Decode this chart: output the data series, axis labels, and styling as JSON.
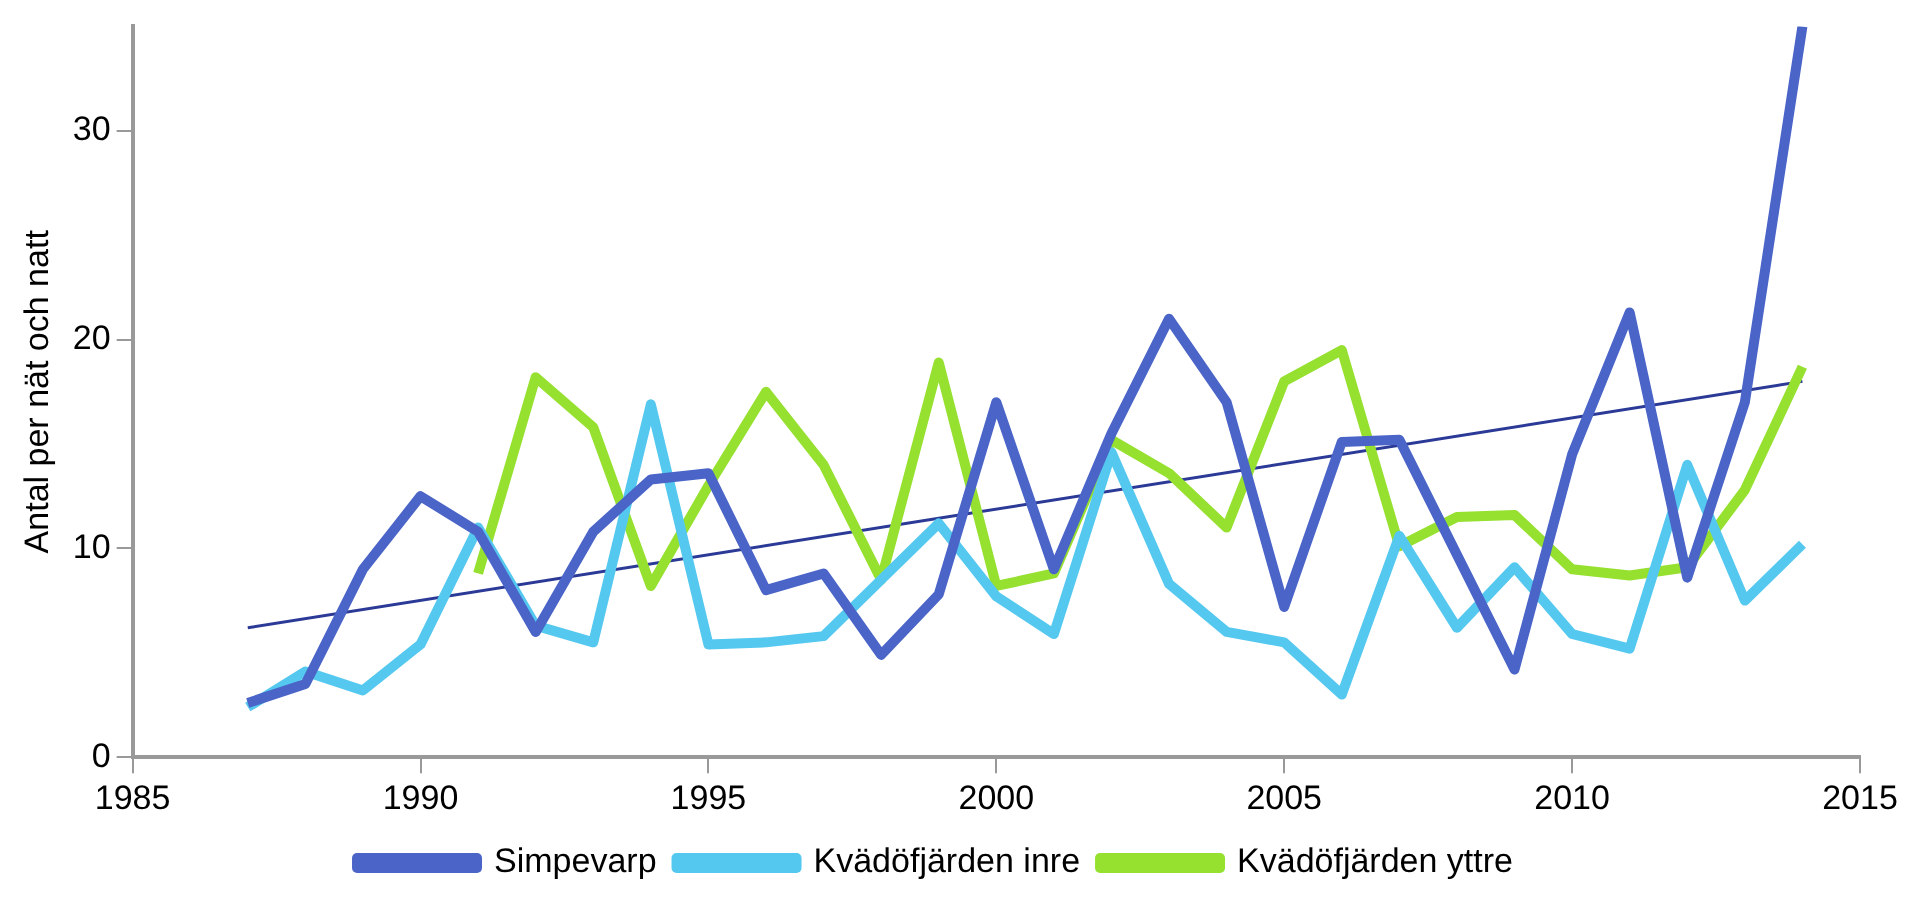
{
  "chart_data": {
    "type": "line",
    "ylabel": "Antal per nät och natt",
    "x": [
      1987,
      1988,
      1989,
      1990,
      1991,
      1992,
      1993,
      1994,
      1995,
      1996,
      1997,
      1998,
      1999,
      2000,
      2001,
      2002,
      2003,
      2004,
      2005,
      2006,
      2007,
      2008,
      2009,
      2010,
      2011,
      2012,
      2013,
      2014
    ],
    "series": [
      {
        "name": "Simpevarp",
        "color": "#4a64c8",
        "values": [
          2.6,
          3.5,
          9,
          12.5,
          10.8,
          6,
          10.8,
          13.3,
          13.6,
          8,
          8.8,
          4.9,
          7.8,
          17,
          9,
          15.5,
          21,
          17,
          7.2,
          15.1,
          15.2,
          9.7,
          4.2,
          14.5,
          21.3,
          8.6,
          17,
          35
        ]
      },
      {
        "name": "Kvädöfjärden inre",
        "color": "#55c8f0",
        "values": [
          2.4,
          4.1,
          3.2,
          5.4,
          11,
          6.3,
          5.5,
          16.9,
          5.4,
          5.5,
          5.8,
          8.5,
          11.2,
          7.7,
          5.9,
          14.6,
          8.3,
          6,
          5.5,
          3,
          10.6,
          6.2,
          9.1,
          5.9,
          5.2,
          14,
          7.5,
          10.2
        ]
      },
      {
        "name": "Kvädöfjärden yttre",
        "color": "#96e030",
        "values": [
          null,
          null,
          null,
          null,
          8.8,
          18.2,
          15.8,
          8.2,
          13,
          17.5,
          14,
          8.5,
          18.9,
          8.2,
          8.8,
          15.2,
          13.6,
          11,
          18,
          19.5,
          10.1,
          11.5,
          11.6,
          9,
          8.7,
          9.1,
          12.8,
          18.7
        ]
      },
      {
        "type": "line",
        "color": "#2a3a96",
        "x": [
          1987,
          2014
        ],
        "values": [
          6.2,
          18
        ]
      }
    ],
    "xlim": [
      1985,
      2015
    ],
    "xticks": [
      1985,
      1990,
      1995,
      2000,
      2005,
      2010,
      2015
    ],
    "ylim": [
      0,
      35
    ],
    "yticks": [
      0,
      10,
      20,
      30
    ],
    "grid": false,
    "legend": "bottom",
    "marker": "none"
  }
}
